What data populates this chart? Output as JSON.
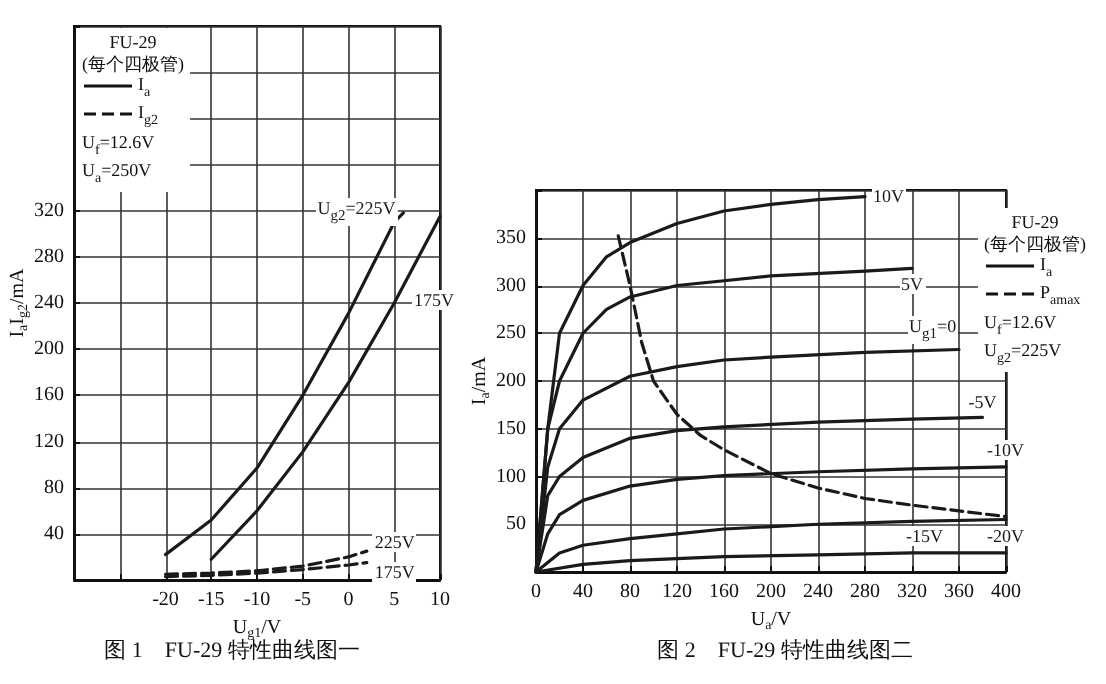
{
  "chart_data": [
    {
      "type": "line",
      "title": "图 1　FU-29 特性曲线图一",
      "xlabel": "U$_{g1}$/V",
      "ylabel": "I$_{a}$I$_{g2}$/mA",
      "xlim": [
        -30,
        10
      ],
      "xticks": [
        {
          "value": -30,
          "label": null
        },
        {
          "value": -25,
          "label": null
        },
        -20,
        -15,
        -10,
        -5,
        0,
        5,
        10
      ],
      "ylim": [
        0,
        480
      ],
      "yticks": [
        {
          "value": 0,
          "label": null
        },
        40,
        80,
        120,
        160,
        200,
        240,
        280,
        320,
        {
          "value": 360,
          "label": null
        },
        {
          "value": 400,
          "label": null
        },
        {
          "value": 440,
          "label": null
        },
        {
          "value": 480,
          "label": null
        }
      ],
      "grid": true,
      "marker": "none",
      "annotations": [
        "FU-29",
        "(每个四极管)",
        "I$_{a}$",
        "I$_{g2}$",
        "U$_{f}$=12.6V",
        "U$_{a}$=250V"
      ],
      "series": [
        {
          "name": "U$_{g2}$=225V",
          "color": "#1a1a1a",
          "line_style": "solid",
          "x": [
            -20,
            -15,
            -10,
            -5,
            0,
            5,
            6
          ],
          "values": [
            22,
            52,
            97,
            160,
            231,
            310,
            318
          ]
        },
        {
          "name": "175V",
          "color": "#1a1a1a",
          "line_style": "solid",
          "x": [
            -15,
            -10,
            -5,
            0,
            5,
            10
          ],
          "values": [
            18,
            60,
            111,
            171,
            240,
            315
          ]
        },
        {
          "name": "225V",
          "color": "#1a1a1a",
          "line_style": "dashed",
          "x": [
            -20,
            -15,
            -10,
            -5,
            0,
            2
          ],
          "values": [
            5,
            6,
            8,
            12,
            20,
            25
          ]
        },
        {
          "name": "175V",
          "color": "#1a1a1a",
          "line_style": "dashed",
          "x": [
            -20,
            -15,
            -10,
            -5,
            0,
            2
          ],
          "values": [
            3,
            4,
            6,
            9,
            13,
            15
          ]
        }
      ]
    },
    {
      "type": "line",
      "title": "图 2　FU-29 特性曲线图二",
      "xlabel": "U$_{a}$/V",
      "ylabel": "I$_{a}$/mA",
      "xlim": [
        0,
        400
      ],
      "xticks": [
        0,
        40,
        80,
        120,
        160,
        200,
        240,
        280,
        320,
        360,
        400
      ],
      "ylim": [
        0,
        400
      ],
      "yticks": [
        {
          "value": 0,
          "label": null
        },
        50,
        100,
        150,
        200,
        250,
        300,
        350,
        {
          "value": 400,
          "label": null
        }
      ],
      "grid": true,
      "marker": "none",
      "annotations": [
        "FU-29",
        "(每个四极管)",
        "I$_{a}$",
        "P$_{amax}$",
        "U$_{f}$=12.6V",
        "U$_{g2}$=225V"
      ],
      "series": [
        {
          "name": "10V",
          "color": "#1a1a1a",
          "line_style": "solid",
          "x": [
            0,
            10,
            20,
            40,
            60,
            80,
            120,
            160,
            200,
            240,
            280
          ],
          "values": [
            0,
            150,
            250,
            300,
            330,
            345,
            365,
            378,
            385,
            390,
            393
          ]
        },
        {
          "name": "5V",
          "color": "#1a1a1a",
          "line_style": "solid",
          "x": [
            0,
            10,
            20,
            40,
            60,
            80,
            120,
            160,
            200,
            280,
            320
          ],
          "values": [
            0,
            150,
            200,
            250,
            275,
            288,
            300,
            305,
            310,
            315,
            318
          ]
        },
        {
          "name": "U$_{g1}$=0",
          "color": "#1a1a1a",
          "line_style": "solid",
          "x": [
            0,
            10,
            20,
            40,
            80,
            120,
            160,
            200,
            280,
            360
          ],
          "values": [
            0,
            110,
            150,
            180,
            205,
            215,
            222,
            225,
            230,
            233
          ]
        },
        {
          "name": "-5V",
          "color": "#1a1a1a",
          "line_style": "solid",
          "x": [
            0,
            10,
            20,
            40,
            80,
            120,
            160,
            240,
            320,
            380
          ],
          "values": [
            0,
            80,
            100,
            120,
            140,
            148,
            152,
            157,
            160,
            162
          ]
        },
        {
          "name": "-10V",
          "color": "#1a1a1a",
          "line_style": "solid",
          "x": [
            0,
            10,
            20,
            40,
            80,
            120,
            160,
            240,
            320,
            400
          ],
          "values": [
            0,
            40,
            60,
            75,
            90,
            97,
            101,
            105,
            108,
            110
          ]
        },
        {
          "name": "-15V",
          "color": "#1a1a1a",
          "line_style": "solid",
          "x": [
            0,
            20,
            40,
            80,
            120,
            160,
            240,
            320,
            400
          ],
          "values": [
            0,
            20,
            28,
            35,
            40,
            45,
            50,
            53,
            55
          ]
        },
        {
          "name": "-20V",
          "color": "#1a1a1a",
          "line_style": "solid",
          "x": [
            0,
            40,
            80,
            160,
            240,
            320,
            400
          ],
          "values": [
            0,
            8,
            12,
            16,
            18,
            20,
            20
          ]
        },
        {
          "color": "#1a1a1a",
          "line_style": "dashed",
          "x": [
            70,
            80,
            90,
            100,
            120,
            140,
            160,
            200,
            240,
            280,
            320,
            360,
            400
          ],
          "values": [
            352,
            300,
            240,
            200,
            165,
            143,
            128,
            103,
            88,
            77,
            70,
            64,
            58
          ]
        }
      ]
    }
  ]
}
